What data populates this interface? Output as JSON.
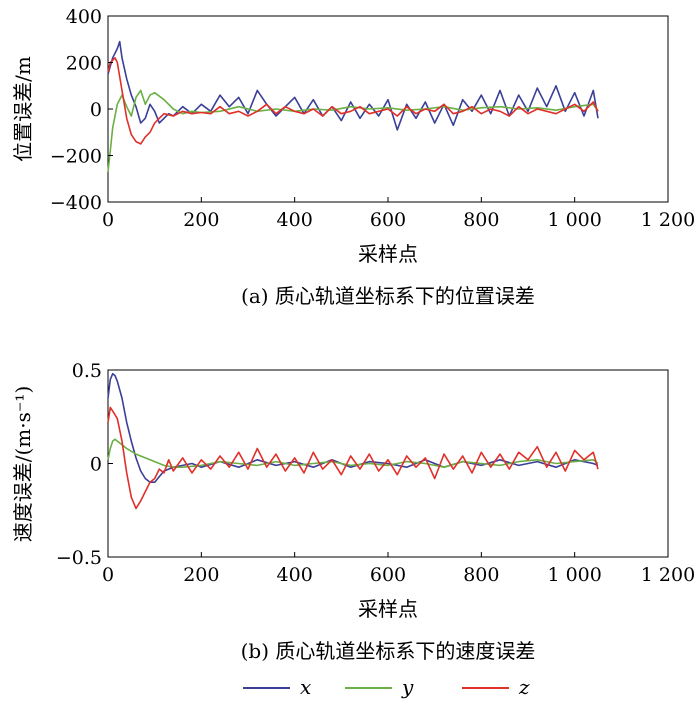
{
  "chart_data": [
    {
      "type": "line",
      "ylabel": "位置误差/m",
      "xlabel": "采样点",
      "caption": "(a) 质心轨道坐标系下的位置误差",
      "xlim": [
        0,
        1200
      ],
      "ylim": [
        -400,
        400
      ],
      "xticks": [
        0,
        200,
        400,
        600,
        800,
        1000,
        1200
      ],
      "xtick_labels": [
        "0",
        "200",
        "400",
        "600",
        "800",
        "1 000",
        "1 200"
      ],
      "yticks": [
        -400,
        -200,
        0,
        200,
        400
      ],
      "ytick_labels": [
        "−400",
        "−200",
        "0",
        "200",
        "400"
      ],
      "series": [
        {
          "name": "x",
          "color": "#3a3f98",
          "x": [
            0,
            10,
            20,
            25,
            30,
            40,
            50,
            60,
            70,
            80,
            90,
            100,
            110,
            120,
            130,
            140,
            160,
            180,
            200,
            220,
            240,
            260,
            280,
            300,
            320,
            340,
            360,
            380,
            400,
            420,
            440,
            460,
            480,
            500,
            520,
            540,
            560,
            580,
            600,
            620,
            640,
            660,
            680,
            700,
            720,
            740,
            760,
            780,
            800,
            820,
            840,
            860,
            880,
            900,
            920,
            940,
            960,
            980,
            1000,
            1020,
            1040,
            1050
          ],
          "y": [
            150,
            220,
            260,
            290,
            220,
            130,
            60,
            10,
            -60,
            -40,
            20,
            -10,
            -60,
            -40,
            -20,
            -30,
            10,
            -20,
            20,
            -10,
            60,
            10,
            50,
            -20,
            80,
            20,
            -30,
            10,
            50,
            -20,
            40,
            -30,
            10,
            -50,
            30,
            -40,
            20,
            -30,
            40,
            -90,
            20,
            -40,
            30,
            -60,
            20,
            -70,
            40,
            -10,
            60,
            -20,
            80,
            -30,
            60,
            -10,
            90,
            10,
            100,
            -10,
            70,
            -30,
            80,
            -40
          ]
        },
        {
          "name": "y",
          "color": "#6ab045",
          "x": [
            0,
            5,
            10,
            20,
            30,
            40,
            50,
            60,
            70,
            80,
            90,
            100,
            120,
            140,
            160,
            180,
            200,
            240,
            280,
            320,
            360,
            400,
            440,
            480,
            520,
            560,
            600,
            640,
            680,
            720,
            760,
            800,
            840,
            880,
            920,
            960,
            1000,
            1040,
            1050
          ],
          "y": [
            -270,
            -180,
            -80,
            20,
            60,
            10,
            -30,
            50,
            80,
            20,
            60,
            70,
            40,
            0,
            -20,
            -10,
            -15,
            -10,
            10,
            -10,
            0,
            -10,
            0,
            -5,
            10,
            0,
            5,
            -5,
            0,
            10,
            -5,
            5,
            10,
            0,
            5,
            -5,
            10,
            20,
            -10
          ]
        },
        {
          "name": "z",
          "color": "#e0302a",
          "x": [
            0,
            5,
            10,
            15,
            20,
            30,
            40,
            50,
            60,
            70,
            80,
            90,
            100,
            110,
            120,
            140,
            160,
            180,
            200,
            220,
            240,
            260,
            280,
            300,
            320,
            340,
            360,
            380,
            400,
            420,
            440,
            460,
            480,
            500,
            520,
            540,
            560,
            580,
            600,
            620,
            640,
            660,
            680,
            700,
            720,
            740,
            760,
            780,
            800,
            820,
            840,
            860,
            880,
            900,
            920,
            940,
            960,
            980,
            1000,
            1020,
            1040,
            1050
          ],
          "y": [
            160,
            200,
            210,
            220,
            200,
            80,
            -40,
            -110,
            -140,
            -150,
            -120,
            -100,
            -60,
            -40,
            -20,
            -30,
            -10,
            -20,
            -15,
            -20,
            10,
            -20,
            -10,
            -30,
            -10,
            20,
            -20,
            10,
            -10,
            -20,
            0,
            -30,
            10,
            -20,
            -10,
            10,
            -20,
            -10,
            0,
            -30,
            10,
            -20,
            0,
            -10,
            20,
            -20,
            -10,
            10,
            -20,
            0,
            -10,
            -30,
            10,
            -20,
            0,
            -10,
            -20,
            0,
            20,
            -10,
            30,
            -10
          ]
        }
      ]
    },
    {
      "type": "line",
      "ylabel": "速度误差/(m·s⁻¹)",
      "xlabel": "采样点",
      "caption": "(b) 质心轨道坐标系下的速度误差",
      "xlim": [
        0,
        1200
      ],
      "ylim": [
        -0.5,
        0.5
      ],
      "xticks": [
        0,
        200,
        400,
        600,
        800,
        1000,
        1200
      ],
      "xtick_labels": [
        "0",
        "200",
        "400",
        "600",
        "800",
        "1 000",
        "1 200"
      ],
      "yticks": [
        -0.5,
        0,
        0.5
      ],
      "ytick_labels": [
        "−0.5",
        "0",
        "0.5"
      ],
      "series": [
        {
          "name": "x",
          "color": "#3a3f98",
          "x": [
            0,
            5,
            10,
            15,
            20,
            30,
            40,
            50,
            60,
            70,
            80,
            90,
            100,
            110,
            120,
            140,
            160,
            180,
            200,
            240,
            280,
            320,
            360,
            400,
            440,
            480,
            520,
            560,
            600,
            640,
            680,
            720,
            760,
            800,
            840,
            880,
            920,
            960,
            1000,
            1040,
            1050
          ],
          "y": [
            0.35,
            0.45,
            0.48,
            0.47,
            0.44,
            0.35,
            0.22,
            0.12,
            0.03,
            -0.04,
            -0.08,
            -0.1,
            -0.1,
            -0.07,
            -0.04,
            -0.02,
            -0.01,
            0.0,
            -0.02,
            0.01,
            -0.02,
            0.02,
            -0.01,
            0.01,
            -0.02,
            0.02,
            -0.02,
            0.01,
            0.0,
            -0.02,
            0.02,
            -0.02,
            0.01,
            -0.01,
            0.02,
            -0.01,
            0.01,
            -0.02,
            0.02,
            0.0,
            -0.01
          ]
        },
        {
          "name": "y",
          "color": "#6ab045",
          "x": [
            0,
            5,
            10,
            15,
            20,
            30,
            40,
            60,
            80,
            100,
            120,
            140,
            160,
            200,
            240,
            280,
            320,
            360,
            400,
            440,
            480,
            520,
            560,
            600,
            640,
            680,
            720,
            760,
            800,
            840,
            880,
            920,
            960,
            1000,
            1040,
            1050
          ],
          "y": [
            0.02,
            0.08,
            0.12,
            0.13,
            0.12,
            0.1,
            0.08,
            0.05,
            0.03,
            0.01,
            -0.01,
            -0.02,
            -0.02,
            -0.01,
            0.01,
            0.0,
            -0.01,
            0.01,
            -0.01,
            0.0,
            0.01,
            -0.01,
            0.0,
            -0.01,
            0.01,
            0.0,
            -0.02,
            0.01,
            0.0,
            -0.01,
            0.01,
            0.02,
            0.0,
            0.01,
            0.02,
            0.0
          ]
        },
        {
          "name": "z",
          "color": "#e0302a",
          "x": [
            0,
            5,
            10,
            20,
            30,
            40,
            50,
            60,
            70,
            80,
            90,
            100,
            110,
            120,
            130,
            140,
            160,
            180,
            200,
            220,
            240,
            260,
            280,
            300,
            320,
            340,
            360,
            380,
            400,
            420,
            440,
            460,
            480,
            500,
            520,
            540,
            560,
            580,
            600,
            620,
            640,
            660,
            680,
            700,
            720,
            740,
            760,
            780,
            800,
            820,
            840,
            860,
            880,
            900,
            920,
            940,
            960,
            980,
            1000,
            1020,
            1040,
            1050
          ],
          "y": [
            0.22,
            0.3,
            0.28,
            0.24,
            0.12,
            -0.05,
            -0.18,
            -0.24,
            -0.2,
            -0.15,
            -0.1,
            -0.08,
            -0.03,
            -0.05,
            0.02,
            -0.04,
            0.03,
            -0.05,
            0.02,
            -0.03,
            0.04,
            -0.02,
            0.06,
            -0.03,
            0.08,
            -0.02,
            0.05,
            -0.04,
            0.03,
            -0.05,
            0.06,
            -0.03,
            0.02,
            -0.06,
            0.04,
            -0.03,
            0.05,
            -0.04,
            0.02,
            -0.06,
            0.04,
            -0.02,
            0.03,
            -0.08,
            0.05,
            -0.03,
            0.04,
            -0.05,
            0.06,
            -0.02,
            0.05,
            -0.03,
            0.06,
            0.02,
            0.09,
            -0.02,
            0.06,
            -0.04,
            0.07,
            0.02,
            0.06,
            -0.03
          ]
        }
      ]
    }
  ],
  "legend": [
    {
      "name": "x",
      "color": "#3a3f98"
    },
    {
      "name": "y",
      "color": "#6ab045"
    },
    {
      "name": "z",
      "color": "#e0302a"
    }
  ]
}
